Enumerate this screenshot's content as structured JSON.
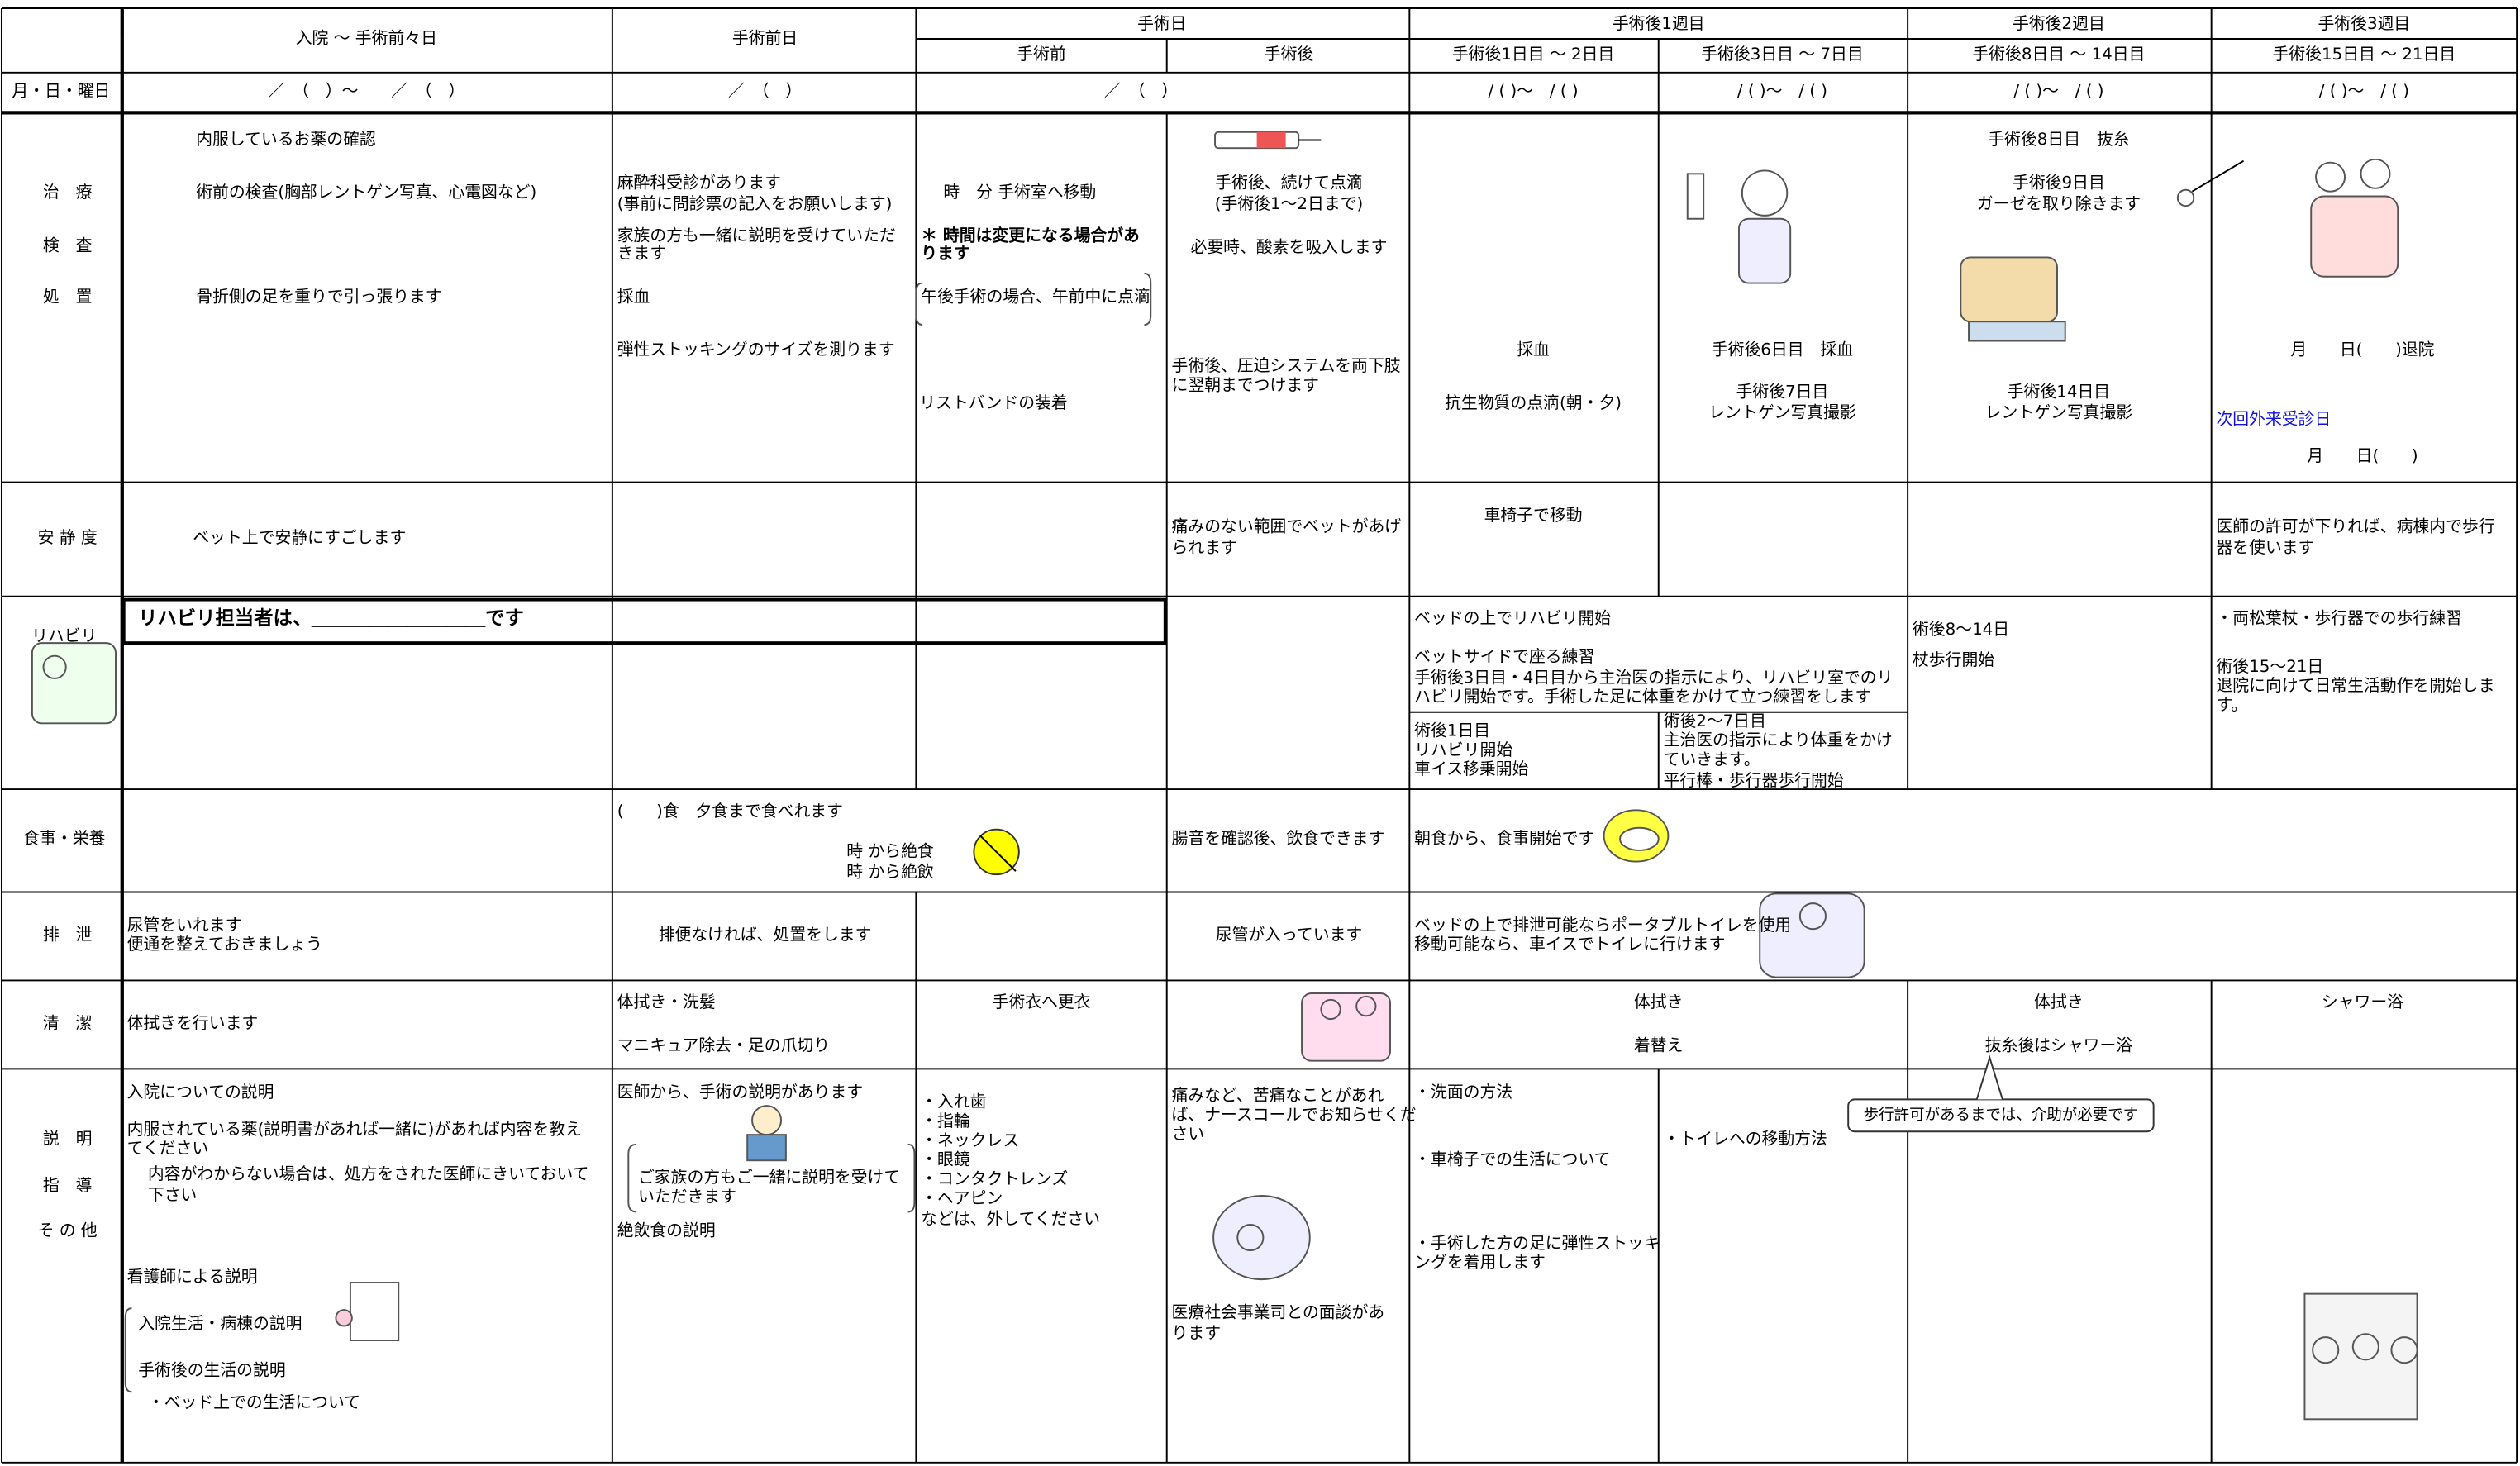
{
  "header": {
    "cols": [
      "入院 ～ 手術前々日",
      "手術前日",
      "手術日",
      "手術後1週目",
      "手術後2週目",
      "手術後3週目"
    ],
    "subcols": [
      "手術前",
      "手術後",
      "手術後1日目 ～ 2日目",
      "手術後3日目 ～ 7日目",
      "手術後8日目 ～ 14日目",
      "手術後15日目 ～ 21日目"
    ]
  },
  "rows": [
    {
      "label": [
        "月・日・曜日"
      ],
      "items": [
        "／　（　）～　　／　（　）",
        "／　（　）",
        "／　（　）",
        "/ ( )～　/ ( )",
        "/ ( )～　/ ( )",
        "/ ( )～　/ ( )",
        "/ ( )～　/ ( )"
      ]
    },
    {
      "label": [
        "治　療",
        "検　査",
        "処　置"
      ],
      "items": [
        "内服しているお薬の確認",
        "術前の検査(胸部レントゲン写真、心電図など)",
        "骨折側の足を重りで引っ張ります",
        "麻酔科受診があります",
        "(事前に問診票の記入をお願いします)",
        "家族の方も一緒に説明を受けていただ",
        "きます",
        "採血",
        "弾性ストッキングのサイズを測ります",
        "時　分 手術室へ移動",
        "＊ 時間は変更になる場合があ",
        "ります",
        "午後手術の場合、午前中に点滴",
        "リストバンドの装着",
        "手術後、続けて点滴",
        "(手術後1～2日まで)",
        "必要時、酸素を吸入します",
        "手術後、圧迫システムを両下肢",
        "に翌朝までつけます",
        "採血",
        "抗生物質の点滴(朝・夕)",
        "手術後6日目　採血",
        "手術後7日目",
        "レントゲン写真撮影",
        "手術後8日目　抜糸",
        "手術後9日目",
        "ガーゼを取り除きます",
        "手術後14日目",
        "レントゲン写真撮影",
        "月　　日(　　)退院",
        "次回外来受診日",
        "月　　日(　　)"
      ]
    },
    {
      "label": [
        "安 静 度"
      ],
      "items": [
        "ベット上で安静にすごします",
        "痛みのない範囲でベットがあげ",
        "られます",
        "車椅子で移動",
        "医師の許可が下りれば、病棟内で歩行",
        "器を使います"
      ]
    },
    {
      "label": [
        "リハビリ"
      ],
      "items": [
        "リハビリ担当者は、＿＿＿＿＿＿＿＿＿です",
        "ベッドの上でリハビリ開始",
        "ベットサイドで座る練習",
        "手術後3日目・4日目から主治医の指示により、リハビリ室でのリ",
        "ハビリ開始です。手術した足に体重をかけて立つ練習をします",
        "術後1日目",
        "リハビリ開始",
        "車イス移乗開始",
        "術後2～7日目",
        "主治医の指示により体重をかけ",
        "ていきます。",
        "平行棒・歩行器歩行開始",
        "術後8～14日",
        "杖歩行開始",
        "・両松葉杖・歩行器での歩行練習",
        "術後15～21日",
        "退院に向けて日常生活動作を開始しま",
        "す。"
      ]
    },
    {
      "label": [
        "食事・栄養"
      ],
      "items": [
        "(　　)食　夕食まで食べれます",
        "時 から絶食",
        "時 から絶飲",
        "腸音を確認後、飲食できます",
        "朝食から、食事開始です"
      ]
    },
    {
      "label": [
        "排　泄"
      ],
      "items": [
        "尿管をいれます",
        "便通を整えておきましょう",
        "排便なければ、処置をします",
        "尿管が入っています",
        "ベッドの上で排泄可能ならポータブルトイレを使用",
        "移動可能なら、車イスでトイレに行けます"
      ]
    },
    {
      "label": [
        "清　潔"
      ],
      "items": [
        "体拭きを行います",
        "体拭き・洗髪",
        "マニキュア除去・足の爪切り",
        "手術衣へ更衣",
        "体拭き",
        "着替え",
        "体拭き",
        "抜糸後はシャワー浴",
        "シャワー浴"
      ]
    },
    {
      "label": [
        "説　明",
        "指　導",
        "そ の 他"
      ],
      "items": [
        "入院についての説明",
        "内服されている薬(説明書があれば一緒に)があれば内容を教え",
        "てください",
        "内容がわからない場合は、処方をされた医師にきいておいて",
        "下さい",
        "看護師による説明",
        "入院生活・病棟の説明",
        "手術後の生活の説明",
        "・ベッド上での生活について",
        "医師から、手術の説明があります",
        "ご家族の方もご一緒に説明を受けて",
        "いただきます",
        "絶飲食の説明",
        "・入れ歯",
        "・指輪",
        "・ネックレス",
        "・眼鏡",
        "・コンタクトレンズ",
        "・ヘアピン",
        "などは、外してください",
        "痛みなど、苦痛なことがあれ",
        "ば、ナースコールでお知らせくだ",
        "さい",
        "医療社会事業司との面談があ",
        "ります",
        "・洗面の方法",
        "・車椅子での生活について",
        "・手術した方の足に弾性ストッキ",
        "ングを着用します",
        "・トイレへの移動方法",
        "歩行許可があるまでは、介助が必要です"
      ]
    }
  ]
}
